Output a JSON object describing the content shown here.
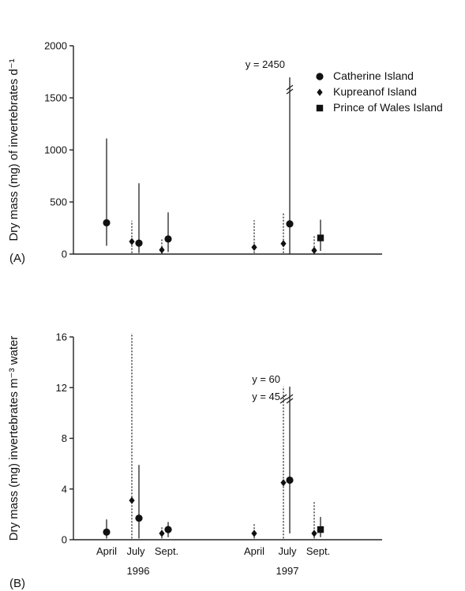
{
  "chart_data": [
    {
      "type": "scatter",
      "panel_label": "(A)",
      "ylabel": "Dry mass (mg) of invertebrates d⁻¹",
      "ylim": [
        0,
        2000
      ],
      "yticks": [
        0,
        500,
        1000,
        1500,
        2000
      ],
      "annotations": [
        {
          "text": "y = 2450",
          "series": "Catherine Island",
          "point": "1997 July"
        }
      ],
      "series": [
        {
          "name": "Catherine Island",
          "marker": "circle",
          "points": [
            {
              "position": "1996 April",
              "y": 300,
              "low": 80,
              "high": 1110
            },
            {
              "position": "1996 July",
              "y": 105,
              "low": 10,
              "high": 680
            },
            {
              "position": "1996 Sept.",
              "y": 145,
              "low": 20,
              "high": 400
            },
            {
              "position": "1997 July",
              "y": 290,
              "low": 0,
              "high": 2450,
              "broken": true
            }
          ]
        },
        {
          "name": "Kupreanof Island",
          "marker": "diamond",
          "points": [
            {
              "position": "1996 July",
              "y": 120,
              "low": 10,
              "high": 320
            },
            {
              "position": "1996 Sept.",
              "y": 40,
              "low": 5,
              "high": 140
            },
            {
              "position": "1997 April",
              "y": 65,
              "low": 10,
              "high": 325
            },
            {
              "position": "1997 July",
              "y": 100,
              "low": 10,
              "high": 390
            },
            {
              "position": "1997 Sept.",
              "y": 35,
              "low": 5,
              "high": 170
            }
          ]
        },
        {
          "name": "Prince of Wales Island",
          "marker": "square",
          "points": [
            {
              "position": "1997 Sept.",
              "y": 155,
              "low": 30,
              "high": 330
            }
          ]
        }
      ]
    },
    {
      "type": "scatter",
      "panel_label": "(B)",
      "ylabel": "Dry mass (mg) invertebrates m⁻³ water",
      "ylim": [
        0,
        16
      ],
      "yticks": [
        0,
        4,
        8,
        12,
        16
      ],
      "x_categories": [
        "April",
        "July",
        "Sept.",
        "April",
        "July",
        "Sept."
      ],
      "x_groups": [
        "1996",
        "1997"
      ],
      "annotations": [
        {
          "text": "y = 60",
          "series": "Catherine Island",
          "point": "1997 July"
        },
        {
          "text": "y = 45",
          "series": "Kupreanof Island",
          "point": "1997 July"
        }
      ],
      "series": [
        {
          "name": "Catherine Island",
          "marker": "circle",
          "points": [
            {
              "position": "1996 April",
              "y": 0.6,
              "low": 0.1,
              "high": 1.6
            },
            {
              "position": "1996 July",
              "y": 1.7,
              "low": 0.1,
              "high": 5.9
            },
            {
              "position": "1996 Sept.",
              "y": 0.8,
              "low": 0.2,
              "high": 1.4
            },
            {
              "position": "1997 July",
              "y": 4.7,
              "low": 0.5,
              "high": 60,
              "broken": true
            }
          ]
        },
        {
          "name": "Kupreanof Island",
          "marker": "diamond",
          "points": [
            {
              "position": "1996 July",
              "y": 3.1,
              "low": 0.1,
              "high": 16.3
            },
            {
              "position": "1996 Sept.",
              "y": 0.5,
              "low": 0.1,
              "high": 1.1
            },
            {
              "position": "1997 April",
              "y": 0.5,
              "low": 0.1,
              "high": 1.3
            },
            {
              "position": "1997 July",
              "y": 4.5,
              "low": 0.1,
              "high": 45,
              "broken": true
            },
            {
              "position": "1997 Sept.",
              "y": 0.5,
              "low": 0.1,
              "high": 3.0
            }
          ]
        },
        {
          "name": "Prince of Wales Island",
          "marker": "square",
          "points": [
            {
              "position": "1997 Sept.",
              "y": 0.8,
              "low": 0.2,
              "high": 1.8
            }
          ]
        }
      ]
    }
  ]
}
